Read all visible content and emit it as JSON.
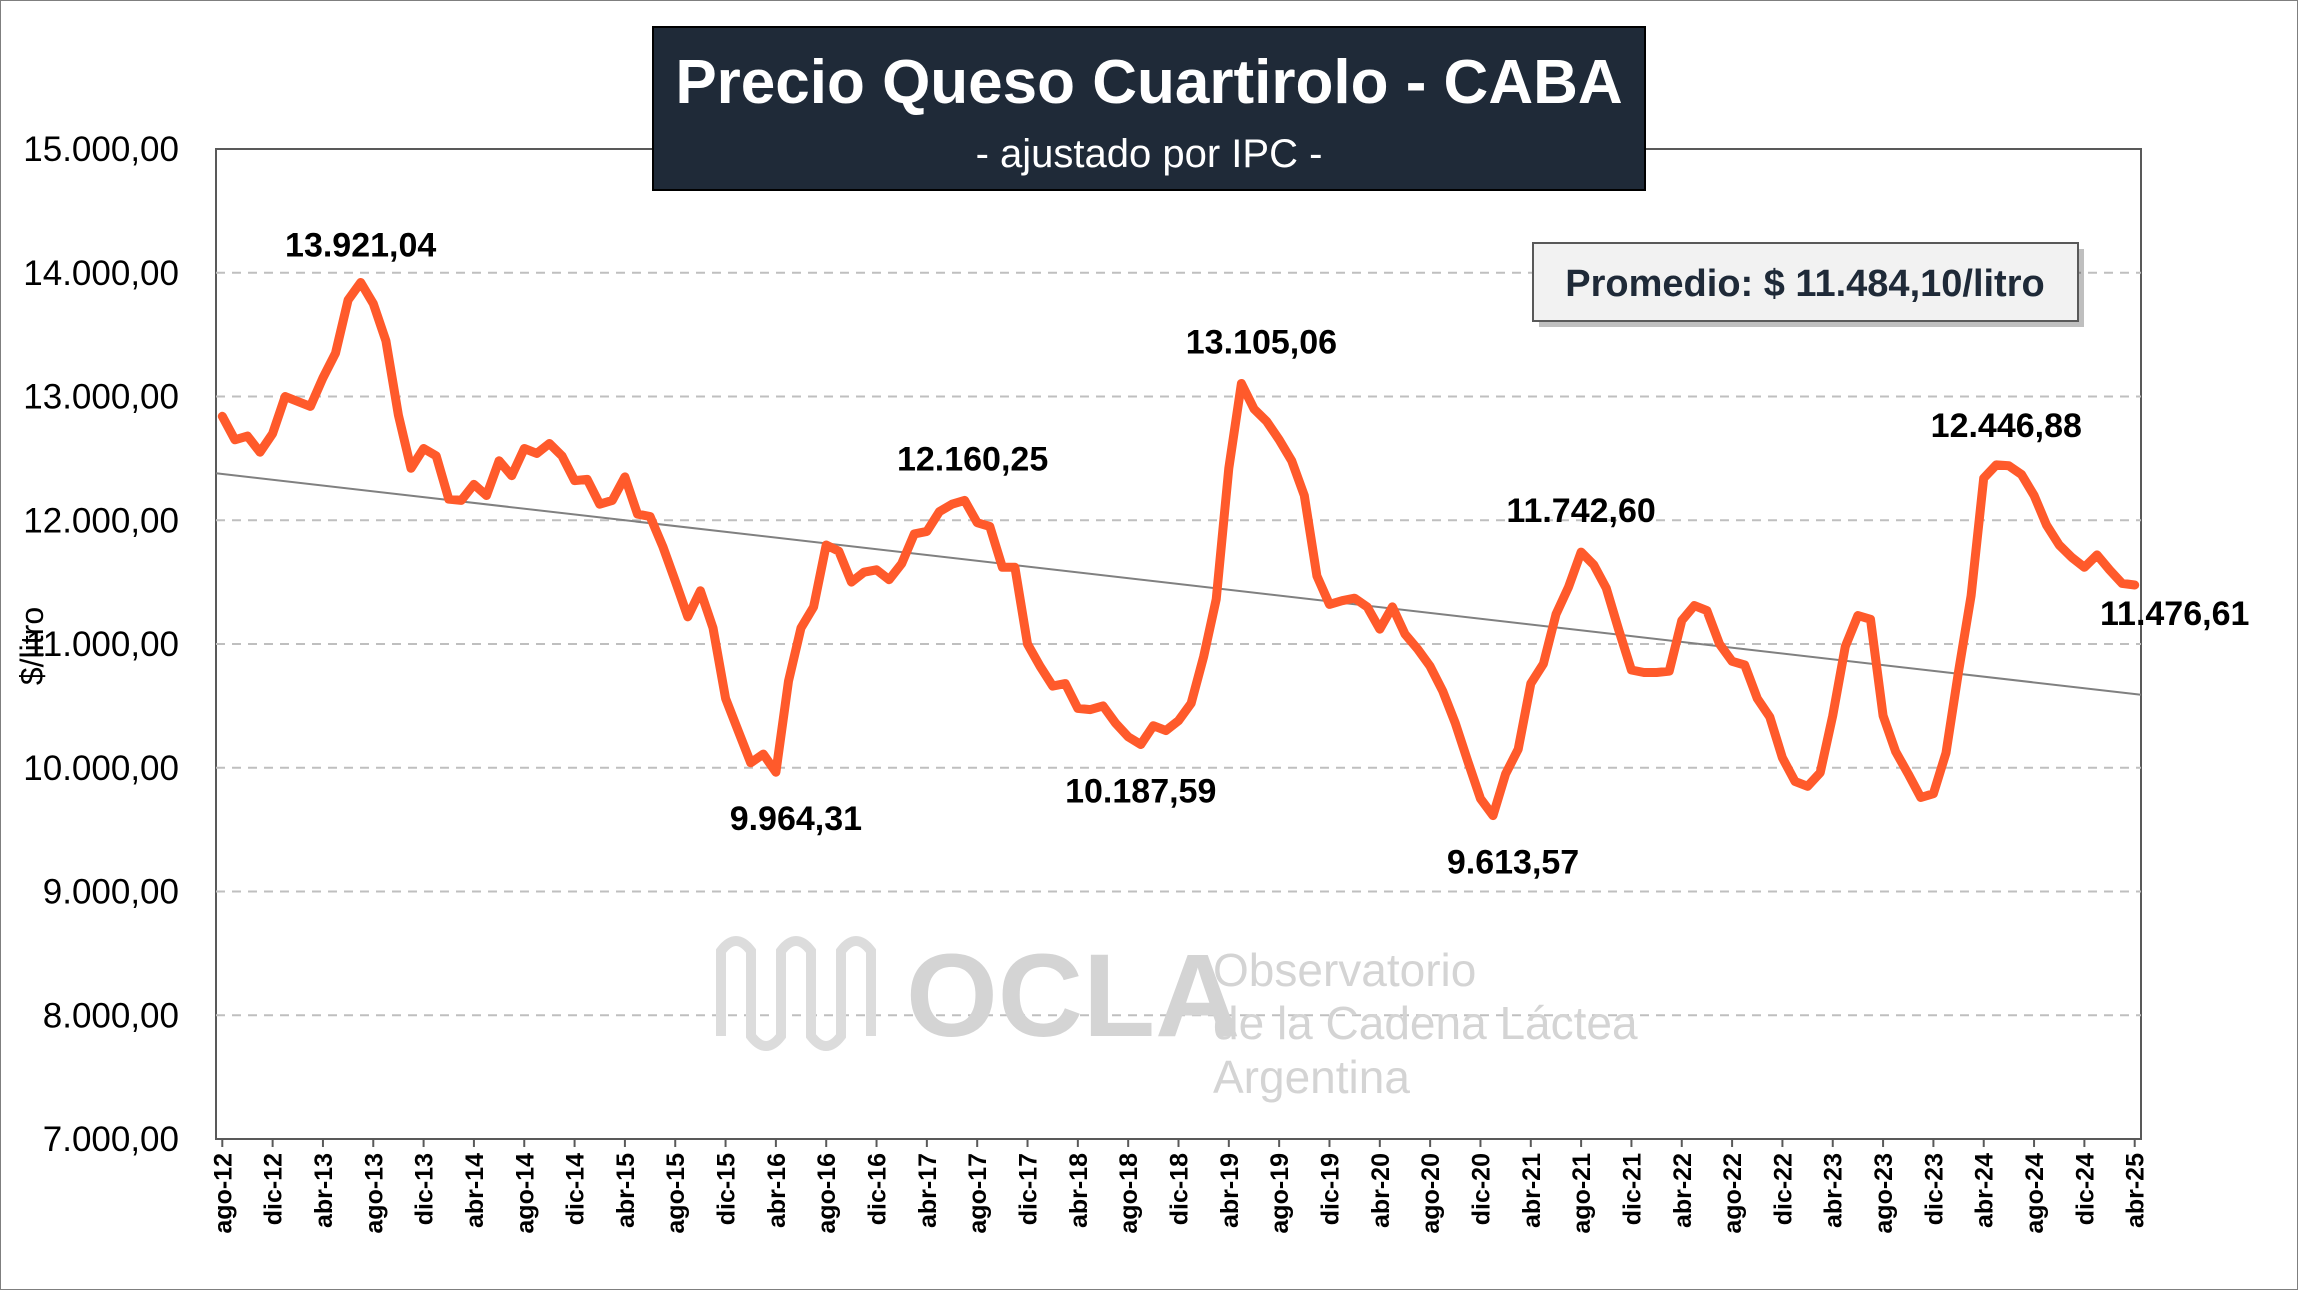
{
  "title": "Precio Queso Cuartirolo - CABA",
  "subtitle": "- ajustado por IPC -",
  "average_box": "Promedio: $ 11.484,10/litro",
  "watermark": {
    "logo_text": "OCLA",
    "line1": "Observatorio",
    "line2": "de la Cadena Láctea",
    "line3": "Argentina"
  },
  "colors": {
    "series": "#ff5a2b",
    "trend": "#808080",
    "title_bg": "#1f2a38",
    "grid": "#bfbfbf"
  },
  "chart_data": {
    "type": "line",
    "ylabel": "$/litro",
    "ylim": [
      7000,
      15000
    ],
    "grid": true,
    "y_ticks": [
      "7.000,00",
      "8.000,00",
      "9.000,00",
      "10.000,00",
      "11.000,00",
      "12.000,00",
      "13.000,00",
      "14.000,00",
      "15.000,00"
    ],
    "x_tick_labels": [
      "ago-12",
      "dic-12",
      "abr-13",
      "ago-13",
      "dic-13",
      "abr-14",
      "ago-14",
      "dic-14",
      "abr-15",
      "ago-15",
      "dic-15",
      "abr-16",
      "ago-16",
      "dic-16",
      "abr-17",
      "ago-17",
      "dic-17",
      "abr-18",
      "ago-18",
      "dic-18",
      "abr-19",
      "ago-19",
      "dic-19",
      "abr-20",
      "ago-20",
      "dic-20",
      "abr-21",
      "ago-21",
      "dic-21",
      "abr-22",
      "ago-22",
      "dic-22",
      "abr-23",
      "ago-23",
      "dic-23",
      "abr-24",
      "ago-24",
      "dic-24",
      "abr-25"
    ],
    "x_start": "ago-12",
    "x_end": "abr-25",
    "series": [
      {
        "name": "",
        "values": [
          12840,
          12650,
          12680,
          12550,
          12700,
          13000,
          12960,
          12920,
          13150,
          13350,
          13780,
          13921.04,
          13750,
          13450,
          12850,
          12420,
          12580,
          12520,
          12170,
          12160,
          12290,
          12200,
          12480,
          12360,
          12580,
          12540,
          12620,
          12520,
          12320,
          12330,
          12130,
          12160,
          12350,
          12050,
          12030,
          11790,
          11510,
          11220,
          11430,
          11130,
          10560,
          10300,
          10040,
          10110,
          9964.31,
          10700,
          11130,
          11300,
          11800,
          11750,
          11500,
          11580,
          11600,
          11520,
          11650,
          11890,
          11910,
          12070,
          12130,
          12160.25,
          11980,
          11950,
          11620,
          11620,
          11000,
          10820,
          10660,
          10680,
          10480,
          10470,
          10500,
          10360,
          10250,
          10187.59,
          10340,
          10300,
          10380,
          10520,
          10900,
          11360,
          12420,
          13105.06,
          12900,
          12800,
          12650,
          12480,
          12200,
          11550,
          11320,
          11350,
          11370,
          11300,
          11120,
          11300,
          11080,
          10960,
          10820,
          10620,
          10360,
          10050,
          9750,
          9613.57,
          9950,
          10150,
          10680,
          10840,
          11240,
          11460,
          11742.6,
          11640,
          11450,
          11110,
          10790,
          10770,
          10770,
          10780,
          11190,
          11310,
          11270,
          11000,
          10860,
          10830,
          10560,
          10410,
          10080,
          9890,
          9850,
          9960,
          10420,
          10980,
          11230,
          11200,
          10420,
          10130,
          9950,
          9760,
          9790,
          10120,
          10780,
          11390,
          12340,
          12446.88,
          12440,
          12370,
          12200,
          11960,
          11800,
          11700,
          11620,
          11720,
          11600,
          11490,
          11476.61
        ]
      }
    ],
    "trend": {
      "start": 12380,
      "end": 10590
    },
    "annotations": [
      {
        "label": "13.921,04",
        "index": 11,
        "value": 13921.04
      },
      {
        "label": "9.964,31",
        "index": 44,
        "value": 9964.31
      },
      {
        "label": "12.160,25",
        "index": 59,
        "value": 12160.25
      },
      {
        "label": "10.187,59",
        "index": 73,
        "value": 10187.59
      },
      {
        "label": "13.105,06",
        "index": 81,
        "value": 13105.06
      },
      {
        "label": "9.613,57",
        "index": 101,
        "value": 9613.57
      },
      {
        "label": "11.742,60",
        "index": 108,
        "value": 11742.6
      },
      {
        "label": "12.446,88",
        "index": 141,
        "value": 12446.88
      },
      {
        "label": "11.476,61",
        "index": 152,
        "value": 11476.61
      }
    ]
  }
}
